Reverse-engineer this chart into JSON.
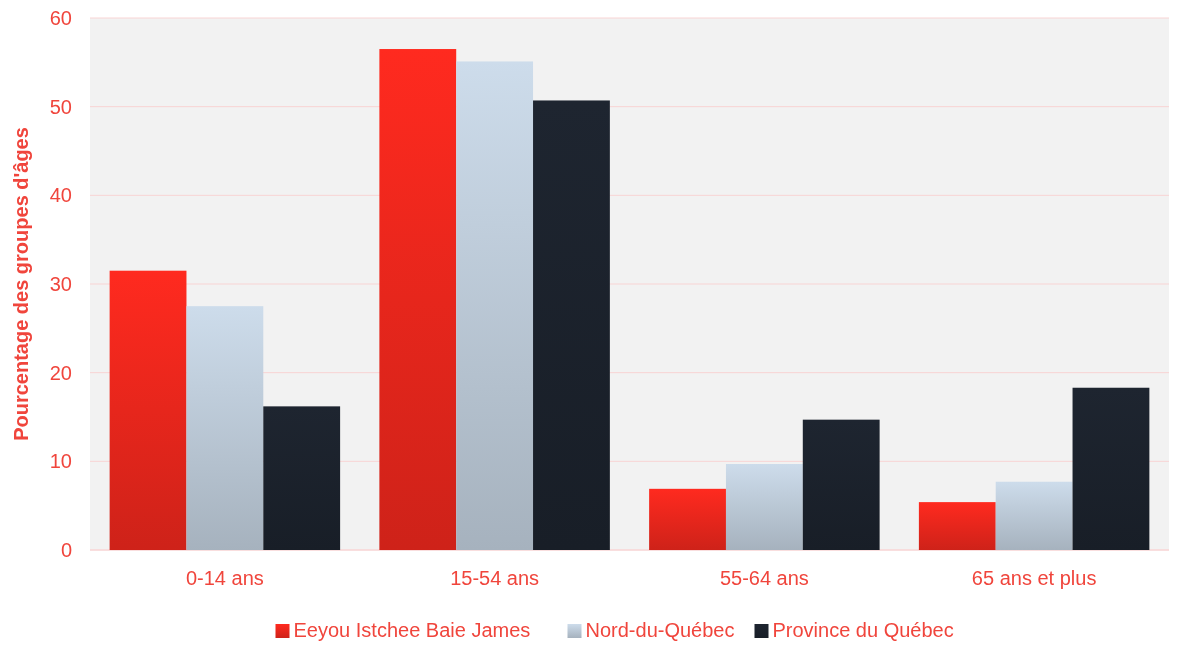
{
  "chart_data": {
    "type": "bar",
    "ylabel": "Pourcentage des groupes d'âges",
    "categories": [
      "0-14 ans",
      "15-54 ans",
      "55-64 ans",
      "65 ans et plus"
    ],
    "series": [
      {
        "name": "Eeyou Istchee Baie James",
        "color": "#ff2a1f",
        "values": [
          31.5,
          56.5,
          6.9,
          5.4
        ]
      },
      {
        "name": "Nord-du-Québec",
        "color": "#cddceb",
        "values": [
          27.5,
          55.1,
          9.7,
          7.7
        ]
      },
      {
        "name": "Province du Québec",
        "color": "#1e2530",
        "values": [
          16.2,
          50.7,
          14.7,
          18.3
        ]
      }
    ],
    "ylim": [
      0,
      60
    ],
    "yticks": [
      0,
      10,
      20,
      30,
      40,
      50,
      60
    ],
    "grid": "y",
    "legend": "bottom"
  }
}
